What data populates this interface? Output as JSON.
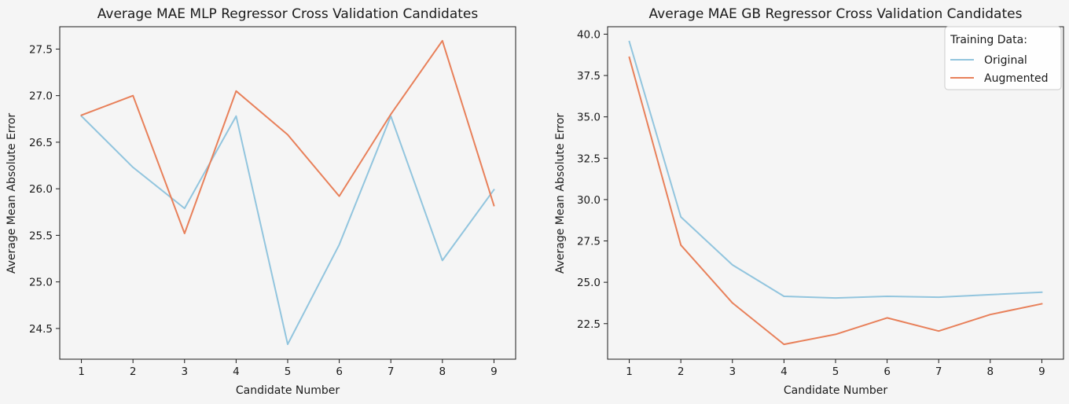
{
  "colors": {
    "background": "#f5f5f5",
    "original": "#92c5de",
    "augmented": "#e8805a",
    "axis": "#1a1a1a"
  },
  "chart_data": [
    {
      "type": "line",
      "title": "Average MAE MLP Regressor Cross Validation Candidates",
      "xlabel": "Candidate Number",
      "ylabel": "Average Mean Absolute Error",
      "x": [
        1,
        2,
        3,
        4,
        5,
        6,
        7,
        8,
        9
      ],
      "xticks": [
        "1",
        "2",
        "3",
        "4",
        "5",
        "6",
        "7",
        "8",
        "9"
      ],
      "yticks": [
        "24.5",
        "25.0",
        "25.5",
        "26.0",
        "26.5",
        "27.0",
        "27.5"
      ],
      "xlim": [
        0.58,
        9.42
      ],
      "ylim": [
        24.17,
        27.74
      ],
      "grid": false,
      "legend": null,
      "series": [
        {
          "key": "original",
          "color": "#92c5de",
          "values": [
            26.78,
            26.23,
            25.79,
            26.78,
            24.33,
            25.4,
            26.78,
            25.23,
            25.99
          ]
        },
        {
          "key": "augmented",
          "color": "#e8805a",
          "values": [
            26.79,
            27.0,
            25.52,
            27.05,
            26.58,
            25.92,
            26.8,
            27.59,
            25.82
          ]
        }
      ]
    },
    {
      "type": "line",
      "title": "Average MAE GB Regressor Cross Validation Candidates",
      "xlabel": "Candidate Number",
      "ylabel": "Average Mean Absolute Error",
      "x": [
        1,
        2,
        3,
        4,
        5,
        6,
        7,
        8,
        9
      ],
      "xticks": [
        "1",
        "2",
        "3",
        "4",
        "5",
        "6",
        "7",
        "8",
        "9"
      ],
      "yticks": [
        "22.5",
        "25.0",
        "27.5",
        "30.0",
        "32.5",
        "35.0",
        "37.5",
        "40.0"
      ],
      "xlim": [
        0.58,
        9.42
      ],
      "ylim": [
        20.35,
        40.45
      ],
      "grid": false,
      "legend": {
        "title": "Training Data:",
        "position": "top-right",
        "entries": [
          "Original",
          "Augmented"
        ]
      },
      "series": [
        {
          "key": "original",
          "name": "Original",
          "color": "#92c5de",
          "values": [
            39.55,
            28.95,
            26.05,
            24.15,
            24.05,
            24.15,
            24.1,
            24.25,
            24.4
          ]
        },
        {
          "key": "augmented",
          "name": "Augmented",
          "color": "#e8805a",
          "values": [
            38.6,
            27.25,
            23.75,
            21.25,
            21.85,
            22.85,
            22.05,
            23.05,
            23.7
          ]
        }
      ]
    }
  ]
}
